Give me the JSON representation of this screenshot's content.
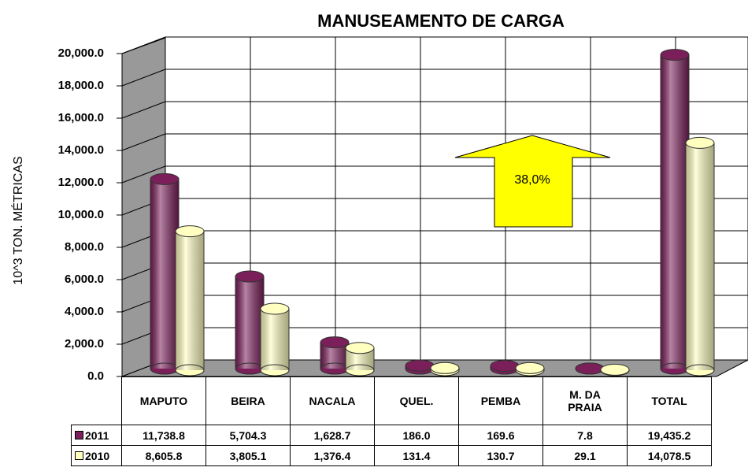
{
  "chart_data": {
    "type": "bar3d",
    "title": "MANUSEAMENTO DE CARGA",
    "y_label": "10^3 TON. MÉTRICAS",
    "categories": [
      "MAPUTO",
      "BEIRA",
      "NACALA",
      "QUEL.",
      "PEMBA",
      "M. DA PRAIA",
      "TOTAL"
    ],
    "series": [
      {
        "name": "2011",
        "color": "#7b1f5a",
        "values": [
          11738.8,
          5704.3,
          1628.7,
          186.0,
          169.6,
          7.8,
          19435.2
        ],
        "value_labels": [
          "11,738.8",
          "5,704.3",
          "1,628.7",
          "186.0",
          "169.6",
          "7.8",
          "19,435.2"
        ]
      },
      {
        "name": "2010",
        "color": "#ffffc0",
        "values": [
          8605.8,
          3805.1,
          1376.4,
          131.4,
          130.7,
          29.1,
          14078.5
        ],
        "value_labels": [
          "8,605.8",
          "3,805.1",
          "1,376.4",
          "131.4",
          "130.7",
          "29.1",
          "14,078.5"
        ]
      }
    ],
    "ylim": [
      0,
      20000
    ],
    "yticks": [
      {
        "value": 0,
        "label": "0.0"
      },
      {
        "value": 2000,
        "label": "2,000.0"
      },
      {
        "value": 4000,
        "label": "4,000.0"
      },
      {
        "value": 6000,
        "label": "6,000.0"
      },
      {
        "value": 8000,
        "label": "8,000.0"
      },
      {
        "value": 10000,
        "label": "10,000.0"
      },
      {
        "value": 12000,
        "label": "12,000.0"
      },
      {
        "value": 14000,
        "label": "14,000.0"
      },
      {
        "value": 16000,
        "label": "16,000.0"
      },
      {
        "value": 18000,
        "label": "18,000.0"
      },
      {
        "value": 20000,
        "label": "20,000.0"
      }
    ],
    "grid": true,
    "annotation": "38,0%"
  }
}
